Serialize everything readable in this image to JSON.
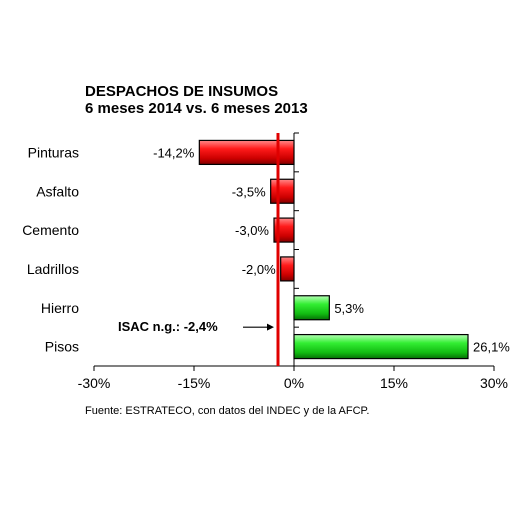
{
  "chart_data": {
    "type": "bar",
    "orientation": "horizontal",
    "title": "DESPACHOS DE INSUMOS",
    "subtitle": "6 meses 2014 vs. 6 meses 2013",
    "categories": [
      "Pinturas",
      "Asfalto",
      "Cemento",
      "Ladrillos",
      "Hierro",
      "Pisos"
    ],
    "values": [
      -14.2,
      -3.5,
      -3.0,
      -2.0,
      5.3,
      26.1
    ],
    "value_labels": [
      "-14,2%",
      "-3,5%",
      "-3,0%",
      "-2,0%",
      "5,3%",
      "26,1%"
    ],
    "bar_colors": [
      "#e00000",
      "#e00000",
      "#e00000",
      "#e00000",
      "#22dd22",
      "#22dd22"
    ],
    "xlim": [
      -30,
      30
    ],
    "xticks": [
      -30,
      -15,
      0,
      15,
      30
    ],
    "xtick_labels": [
      "-30%",
      "-15%",
      "0%",
      "15%",
      "30%"
    ],
    "grid": false,
    "reference_line": {
      "value": -2.4,
      "label": "ISAC n.g.: -2,4%",
      "color": "#e00000"
    },
    "source": "Fuente: ESTRATECO, con datos del INDEC y de la AFCP."
  }
}
